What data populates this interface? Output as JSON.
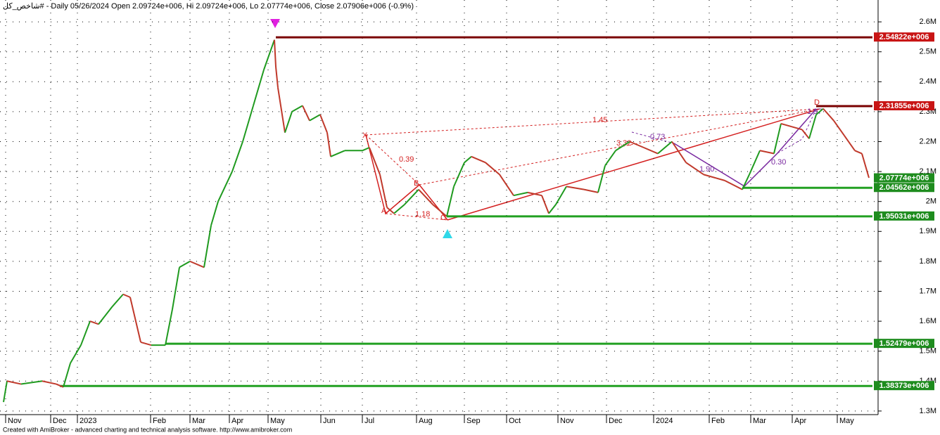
{
  "chart_data": {
    "type": "line",
    "title": "شاخص_کل# - Daily 05/26/2024 Open 2.09724e+006, Hi 2.09724e+006, Lo 2.07774e+006, Close 2.07906e+006 (-0.9%)",
    "footer": "Created with AmiBroker - advanced charting and technical analysis software. http://www.amibroker.com",
    "series": [
      {
        "name": "Close",
        "color": "#1f9a1f",
        "down_color": "#c0392b",
        "x": [
          1,
          2,
          6,
          12,
          16,
          18,
          20,
          23,
          25.6,
          28,
          32,
          35,
          37,
          40,
          43,
          47,
          49,
          51,
          54,
          58,
          60,
          62,
          66,
          69,
          72,
          75,
          78,
          78.4,
          79,
          81,
          83,
          86,
          88,
          91,
          93,
          94,
          98,
          103,
          105,
          108,
          110,
          112,
          115,
          119,
          123,
          127,
          129,
          132,
          134,
          138,
          142,
          146,
          150,
          154,
          156,
          158,
          161,
          166,
          170,
          172,
          175,
          179,
          183,
          187,
          191,
          195,
          200,
          206,
          211,
          213,
          216,
          220,
          222,
          225,
          228,
          230,
          232,
          234,
          237,
          240,
          243,
          245,
          247
        ],
        "values": [
          1330000,
          1400000,
          1390000,
          1400000,
          1390000,
          1380000,
          1460000,
          1520000,
          1600000,
          1590000,
          1650000,
          1690000,
          1680000,
          1530000,
          1520000,
          1520000,
          1640000,
          1780000,
          1800000,
          1780000,
          1920000,
          2000000,
          2100000,
          2200000,
          2320000,
          2440000,
          2540000,
          2450000,
          2380000,
          2230000,
          2300000,
          2320000,
          2270000,
          2290000,
          2230000,
          2150000,
          2170000,
          2170000,
          2180000,
          2090000,
          1980000,
          1960000,
          1990000,
          2040000,
          1990000,
          1950000,
          2050000,
          2130000,
          2150000,
          2130000,
          2090000,
          2020000,
          2030000,
          2020000,
          1960000,
          1990000,
          2050000,
          2040000,
          2030000,
          2120000,
          2170000,
          2200000,
          2180000,
          2160000,
          2200000,
          2130000,
          2090000,
          2070000,
          2040000,
          2090000,
          2170000,
          2160000,
          2260000,
          2250000,
          2240000,
          2210000,
          2290000,
          2310000,
          2270000,
          2220000,
          2170000,
          2160000,
          2079060
        ]
      }
    ],
    "xlim": [
      0,
      248
    ],
    "xticks": [
      {
        "value": 1.6,
        "label": "Nov"
      },
      {
        "value": 14.4,
        "label": "Dec"
      },
      {
        "value": 22,
        "label": "2023"
      },
      {
        "value": 42.8,
        "label": "Feb"
      },
      {
        "value": 54,
        "label": "Mar"
      },
      {
        "value": 65.2,
        "label": "Apr"
      },
      {
        "value": 76.2,
        "label": "May"
      },
      {
        "value": 91.2,
        "label": "Jun"
      },
      {
        "value": 103,
        "label": "Jul"
      },
      {
        "value": 118.4,
        "label": "Aug"
      },
      {
        "value": 132,
        "label": "Sep"
      },
      {
        "value": 144,
        "label": "Oct"
      },
      {
        "value": 158.6,
        "label": "Nov"
      },
      {
        "value": 172.4,
        "label": "Dec"
      },
      {
        "value": 185.8,
        "label": "2024"
      },
      {
        "value": 201.6,
        "label": "Feb"
      },
      {
        "value": 213.4,
        "label": "Mar"
      },
      {
        "value": 225.2,
        "label": "Apr"
      },
      {
        "value": 238,
        "label": "May"
      }
    ],
    "ylim": [
      1288000,
      2673000
    ],
    "yticks": [
      {
        "value": 1300000,
        "label": "1.3M"
      },
      {
        "value": 1400000,
        "label": "1.4M"
      },
      {
        "value": 1500000,
        "label": "1.5M"
      },
      {
        "value": 1600000,
        "label": "1.6M"
      },
      {
        "value": 1700000,
        "label": "1.7M"
      },
      {
        "value": 1800000,
        "label": "1.8M"
      },
      {
        "value": 1900000,
        "label": "1.9M"
      },
      {
        "value": 2000000,
        "label": "2M"
      },
      {
        "value": 2100000,
        "label": "2.1M"
      },
      {
        "value": 2200000,
        "label": "2.2M"
      },
      {
        "value": 2300000,
        "label": "2.3M"
      },
      {
        "value": 2400000,
        "label": "2.4M"
      },
      {
        "value": 2500000,
        "label": "2.5M"
      },
      {
        "value": 2600000,
        "label": "2.6M"
      }
    ],
    "grid": true,
    "levels": [
      {
        "value": 2548220,
        "label": "2.54822e+006",
        "color": "#7a0000",
        "box": "#c81414",
        "x0": 78.4
      },
      {
        "value": 2318550,
        "label": "2.31855e+006",
        "color": "#7a0000",
        "box": "#c81414",
        "x0": 232
      },
      {
        "value": 2045620,
        "label": "2.04562e+006",
        "color": "#22a022",
        "box": "#1e8c1e",
        "x0": 211
      },
      {
        "value": 1950310,
        "label": "1.95031e+006",
        "color": "#22a022",
        "box": "#1e8c1e",
        "x0": 127
      },
      {
        "value": 1524790,
        "label": "1.52479e+006",
        "color": "#22a022",
        "box": "#1e8c1e",
        "x0": 47
      },
      {
        "value": 1383730,
        "label": "1.38373e+006",
        "color": "#22a022",
        "box": "#1e8c1e",
        "x0": 17
      }
    ],
    "last": {
      "value": 2077740,
      "label": "2.07774e+006",
      "box": "#1e8c1e"
    },
    "annotations": [
      "X",
      "A",
      "B",
      "C",
      "D",
      "0.39",
      "1.18",
      "1.45",
      "3.32",
      "0.73",
      "1.90",
      "0.30",
      "1.97"
    ]
  }
}
